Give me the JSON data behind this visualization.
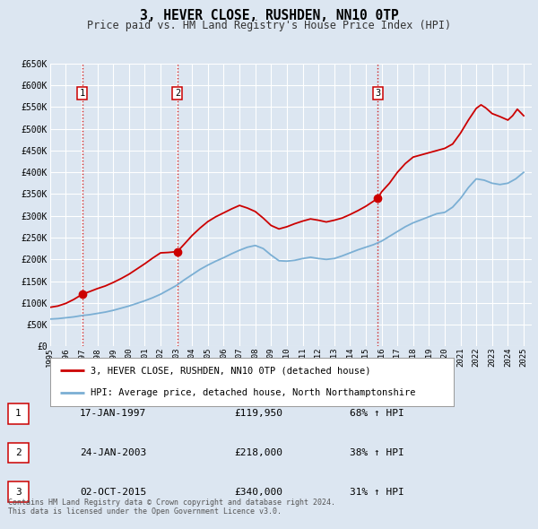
{
  "title": "3, HEVER CLOSE, RUSHDEN, NN10 0TP",
  "subtitle": "Price paid vs. HM Land Registry's House Price Index (HPI)",
  "ylim": [
    0,
    650000
  ],
  "xlim_start": 1995.0,
  "xlim_end": 2025.5,
  "yticks": [
    0,
    50000,
    100000,
    150000,
    200000,
    250000,
    300000,
    350000,
    400000,
    450000,
    500000,
    550000,
    600000,
    650000
  ],
  "ytick_labels": [
    "£0",
    "£50K",
    "£100K",
    "£150K",
    "£200K",
    "£250K",
    "£300K",
    "£350K",
    "£400K",
    "£450K",
    "£500K",
    "£550K",
    "£600K",
    "£650K"
  ],
  "xticks": [
    1995,
    1996,
    1997,
    1998,
    1999,
    2000,
    2001,
    2002,
    2003,
    2004,
    2005,
    2006,
    2007,
    2008,
    2009,
    2010,
    2011,
    2012,
    2013,
    2014,
    2015,
    2016,
    2017,
    2018,
    2019,
    2020,
    2021,
    2022,
    2023,
    2024,
    2025
  ],
  "sale_dates": [
    1997.04,
    2003.07,
    2015.75
  ],
  "sale_prices": [
    119950,
    218000,
    340000
  ],
  "sale_labels": [
    "1",
    "2",
    "3"
  ],
  "vline_color": "#cc0000",
  "red_line_color": "#cc0000",
  "blue_line_color": "#7bafd4",
  "background_color": "#dce6f1",
  "grid_color": "#ffffff",
  "legend_label_red": "3, HEVER CLOSE, RUSHDEN, NN10 0TP (detached house)",
  "legend_label_blue": "HPI: Average price, detached house, North Northamptonshire",
  "table_rows": [
    {
      "num": "1",
      "date": "17-JAN-1997",
      "price": "£119,950",
      "pct": "68% ↑ HPI"
    },
    {
      "num": "2",
      "date": "24-JAN-2003",
      "price": "£218,000",
      "pct": "38% ↑ HPI"
    },
    {
      "num": "3",
      "date": "02-OCT-2015",
      "price": "£340,000",
      "pct": "31% ↑ HPI"
    }
  ],
  "footnote1": "Contains HM Land Registry data © Crown copyright and database right 2024.",
  "footnote2": "This data is licensed under the Open Government Licence v3.0.",
  "hpi_years": [
    1995.0,
    1995.5,
    1996.0,
    1996.5,
    1997.0,
    1997.5,
    1998.0,
    1998.5,
    1999.0,
    1999.5,
    2000.0,
    2000.5,
    2001.0,
    2001.5,
    2002.0,
    2002.5,
    2003.0,
    2003.5,
    2004.0,
    2004.5,
    2005.0,
    2005.5,
    2006.0,
    2006.5,
    2007.0,
    2007.5,
    2008.0,
    2008.5,
    2009.0,
    2009.5,
    2010.0,
    2010.5,
    2011.0,
    2011.5,
    2012.0,
    2012.5,
    2013.0,
    2013.5,
    2014.0,
    2014.5,
    2015.0,
    2015.5,
    2016.0,
    2016.5,
    2017.0,
    2017.5,
    2018.0,
    2018.5,
    2019.0,
    2019.5,
    2020.0,
    2020.5,
    2021.0,
    2021.5,
    2022.0,
    2022.5,
    2023.0,
    2023.5,
    2024.0,
    2024.5,
    2025.0
  ],
  "hpi_vals": [
    63000,
    64000,
    66000,
    68000,
    71000,
    73000,
    76000,
    79000,
    83000,
    88000,
    93000,
    99000,
    105000,
    112000,
    120000,
    130000,
    140000,
    153000,
    165000,
    177000,
    187000,
    196000,
    204000,
    213000,
    221000,
    228000,
    232000,
    225000,
    210000,
    197000,
    196000,
    198000,
    202000,
    205000,
    202000,
    200000,
    202000,
    208000,
    215000,
    222000,
    228000,
    234000,
    242000,
    253000,
    264000,
    275000,
    284000,
    291000,
    298000,
    305000,
    308000,
    320000,
    340000,
    365000,
    385000,
    382000,
    375000,
    372000,
    375000,
    385000,
    400000
  ],
  "prop_years": [
    1995.0,
    1995.5,
    1996.0,
    1996.5,
    1997.04,
    1997.5,
    1998.0,
    1998.5,
    1999.0,
    1999.5,
    2000.0,
    2000.5,
    2001.0,
    2001.5,
    2002.0,
    2002.5,
    2003.07,
    2003.5,
    2004.0,
    2004.5,
    2005.0,
    2005.5,
    2006.0,
    2006.5,
    2007.0,
    2007.5,
    2008.0,
    2008.5,
    2009.0,
    2009.5,
    2010.0,
    2010.5,
    2011.0,
    2011.5,
    2012.0,
    2012.5,
    2013.0,
    2013.5,
    2014.0,
    2014.5,
    2015.0,
    2015.75,
    2016.0,
    2016.5,
    2017.0,
    2017.5,
    2018.0,
    2018.5,
    2019.0,
    2019.5,
    2020.0,
    2020.5,
    2021.0,
    2021.5,
    2022.0,
    2022.3,
    2022.6,
    2023.0,
    2023.5,
    2024.0,
    2024.3,
    2024.6,
    2025.0
  ],
  "prop_vals": [
    90000,
    93000,
    99000,
    108000,
    119950,
    126000,
    133000,
    139000,
    147000,
    156000,
    166000,
    178000,
    190000,
    203000,
    215000,
    216000,
    218000,
    235000,
    255000,
    272000,
    287000,
    298000,
    307000,
    316000,
    324000,
    318000,
    310000,
    295000,
    278000,
    270000,
    275000,
    282000,
    288000,
    293000,
    290000,
    286000,
    290000,
    295000,
    303000,
    312000,
    322000,
    340000,
    355000,
    375000,
    400000,
    420000,
    435000,
    440000,
    445000,
    450000,
    455000,
    465000,
    490000,
    520000,
    547000,
    555000,
    548000,
    535000,
    528000,
    520000,
    530000,
    545000,
    530000
  ]
}
